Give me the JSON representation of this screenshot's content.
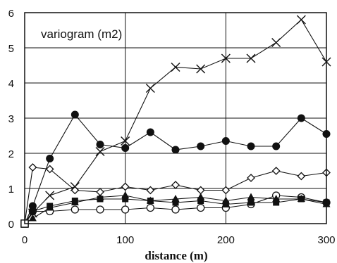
{
  "chart_data": {
    "type": "line",
    "title": "variogram (m2)",
    "xlabel": "distance (m)",
    "ylabel": "",
    "xlim": [
      0,
      300
    ],
    "ylim": [
      0,
      6
    ],
    "x_ticks": [
      "0",
      "100",
      "200",
      "300"
    ],
    "y_ticks": [
      "0",
      "1",
      "2",
      "3",
      "4",
      "5",
      "6"
    ],
    "grid": true,
    "x": [
      0,
      8,
      25,
      50,
      75,
      100,
      125,
      150,
      175,
      200,
      225,
      250,
      275,
      300
    ],
    "series": [
      {
        "marker": "cross",
        "values": [
          0,
          0.3,
          0.8,
          1.05,
          2.05,
          2.35,
          3.85,
          4.45,
          4.4,
          4.7,
          4.7,
          5.15,
          5.8,
          4.6
        ]
      },
      {
        "marker": "filled-circle",
        "values": [
          0,
          0.5,
          1.85,
          3.1,
          2.25,
          2.15,
          2.6,
          2.1,
          2.2,
          2.35,
          2.2,
          2.2,
          3.0,
          2.55
        ]
      },
      {
        "marker": "open-diamond",
        "values": [
          0,
          1.6,
          1.55,
          0.95,
          0.9,
          1.05,
          0.95,
          1.1,
          0.95,
          0.95,
          1.3,
          1.5,
          1.35,
          1.45
        ]
      },
      {
        "marker": "filled-triangle",
        "values": [
          0,
          0.15,
          0.45,
          0.6,
          0.75,
          0.8,
          0.65,
          0.7,
          0.75,
          0.65,
          0.75,
          0.7,
          0.7,
          0.55
        ]
      },
      {
        "marker": "filled-square",
        "values": [
          0,
          0.35,
          0.5,
          0.65,
          0.7,
          0.7,
          0.65,
          0.6,
          0.65,
          0.55,
          0.6,
          0.6,
          0.7,
          0.6
        ]
      },
      {
        "marker": "open-circle",
        "values": [
          0,
          0.35,
          0.35,
          0.4,
          0.4,
          0.4,
          0.45,
          0.4,
          0.45,
          0.45,
          0.55,
          0.8,
          0.75,
          0.6
        ]
      }
    ]
  }
}
